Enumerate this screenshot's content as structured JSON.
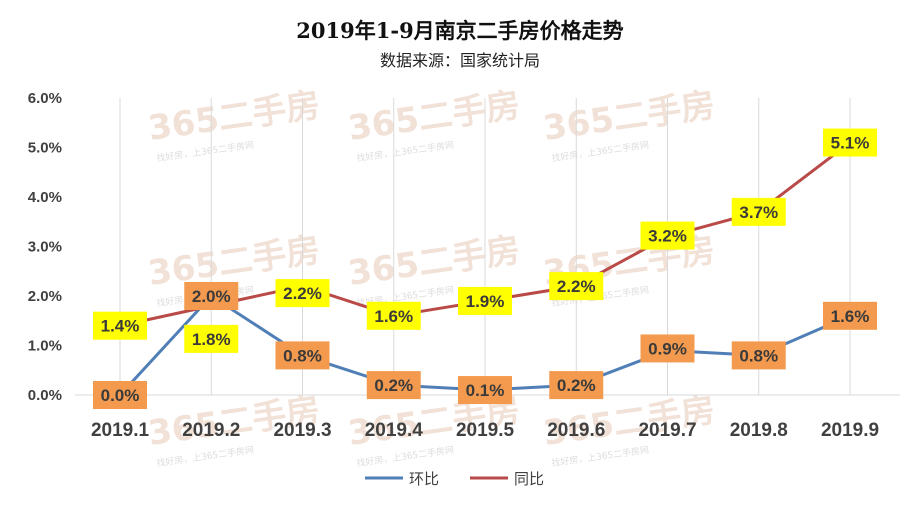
{
  "chart_data": {
    "type": "line",
    "title": "2019年1-9月南京二手房价格走势",
    "subtitle": "数据来源：国家统计局",
    "categories": [
      "2019.1",
      "2019.2",
      "2019.3",
      "2019.4",
      "2019.5",
      "2019.6",
      "2019.7",
      "2019.8",
      "2019.9"
    ],
    "ylim": [
      0,
      6
    ],
    "yticks": [
      "0.0%",
      "1.0%",
      "2.0%",
      "3.0%",
      "4.0%",
      "5.0%",
      "6.0%"
    ],
    "grid": "vertical",
    "legend_position": "bottom",
    "series": [
      {
        "name": "环比",
        "color": "#4f7fb6",
        "label_bg": "#f39a4e",
        "values": [
          0.0,
          2.0,
          0.8,
          0.2,
          0.1,
          0.2,
          0.9,
          0.8,
          1.6
        ],
        "labels": [
          "0.0%",
          "2.0%",
          "0.8%",
          "0.2%",
          "0.1%",
          "0.2%",
          "0.9%",
          "0.8%",
          "1.6%"
        ]
      },
      {
        "name": "同比",
        "color": "#b94a48",
        "label_bg": "#ffff00",
        "values": [
          1.4,
          1.8,
          2.2,
          1.6,
          1.9,
          2.2,
          3.2,
          3.7,
          5.1
        ],
        "labels": [
          "1.4%",
          "1.8%",
          "2.2%",
          "1.6%",
          "1.9%",
          "2.2%",
          "3.2%",
          "3.7%",
          "5.1%"
        ]
      }
    ]
  },
  "watermark": {
    "brand": "365二手房",
    "slogan": "找好房，上365二手房网"
  }
}
